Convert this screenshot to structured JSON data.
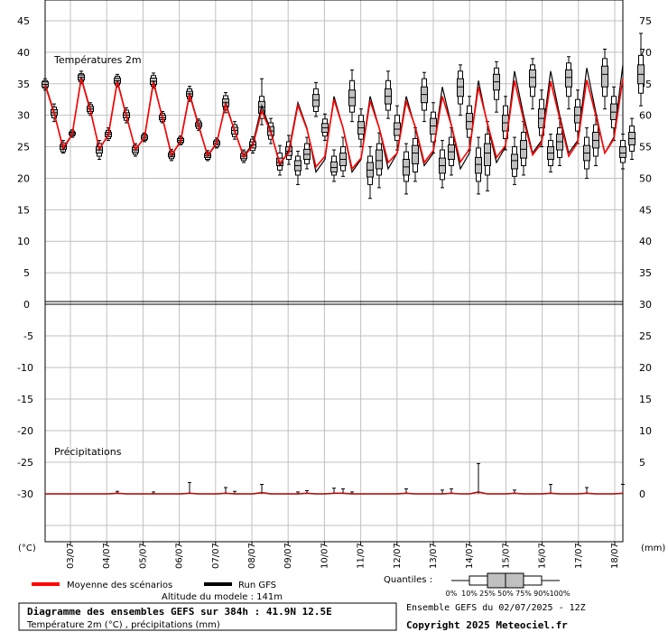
{
  "chart_data": {
    "type": "line",
    "panels": [
      {
        "title": "Températures 2m",
        "left_axis_ticks": [
          "45",
          "40",
          "35",
          "30",
          "25",
          "20",
          "15",
          "10",
          "5",
          "0"
        ],
        "right_axis_ticks": [
          "75",
          "70",
          "65",
          "60",
          "55",
          "50",
          "45",
          "40",
          "35",
          "30"
        ],
        "ylim": [
          0,
          45
        ]
      },
      {
        "title": "Précipitations",
        "left_axis_ticks": [
          "-5",
          "-10",
          "-15",
          "-20",
          "-25",
          "-30"
        ],
        "right_axis_ticks": [
          "25",
          "20",
          "15",
          "10",
          "5",
          "0"
        ],
        "ylim": [
          0,
          30
        ]
      }
    ],
    "x_dates": [
      "03/07",
      "04/07",
      "05/07",
      "06/07",
      "07/07",
      "08/07",
      "09/07",
      "10/07",
      "11/07",
      "12/07",
      "13/07",
      "14/07",
      "15/07",
      "16/07",
      "17/07",
      "18/07"
    ],
    "left_unit": "(°C)",
    "right_unit": "(mm)",
    "temperature_run_gfs": [
      35,
      30.5,
      24.5,
      27,
      36,
      31,
      24.5,
      27,
      35.5,
      30,
      24.5,
      26.5,
      35.5,
      29.5,
      23.5,
      26,
      33.5,
      28.5,
      23.5,
      25.5,
      32,
      27.5,
      23.5,
      25.5,
      31.5,
      27.5,
      22,
      24.5,
      32,
      28,
      21,
      23,
      33,
      28,
      21,
      23,
      33,
      28,
      21.5,
      24,
      33,
      28,
      22,
      24,
      34.5,
      28.5,
      21.5,
      24,
      35.5,
      28.5,
      22.5,
      25,
      37,
      30,
      24,
      26,
      37,
      30,
      24,
      26,
      37.5,
      30.5,
      24,
      26.5,
      38
    ],
    "temperature_mean": [
      34.8,
      30.3,
      24.8,
      27,
      35.8,
      30.8,
      24.7,
      26.8,
      35.3,
      29.9,
      24.6,
      26.4,
      35.2,
      29.6,
      23.7,
      25.8,
      33.3,
      28.3,
      23.6,
      25.6,
      31.7,
      27.5,
      23.4,
      25.2,
      30.7,
      27.3,
      22.3,
      24.1,
      31.6,
      27.8,
      21.8,
      23.5,
      32.5,
      28,
      21.5,
      23.2,
      32.3,
      28,
      22.5,
      24,
      32.2,
      28.2,
      22.5,
      24.4,
      33,
      28.4,
      22.6,
      24.6,
      34.5,
      28.7,
      23.3,
      25.2,
      35.5,
      29.3,
      23.7,
      25.6,
      35.4,
      29.5,
      23.5,
      25.7,
      35.6,
      30,
      24,
      26.2,
      35.8
    ],
    "temperature_boxes": [
      {
        "q0": 34,
        "q10": 34.3,
        "q25": 34.5,
        "q50": 34.9,
        "q75": 35.3,
        "q90": 35.5,
        "q100": 35.8
      },
      {
        "q0": 29,
        "q10": 29.6,
        "q25": 30,
        "q50": 30.4,
        "q75": 30.9,
        "q90": 31.3,
        "q100": 31.8
      },
      {
        "q0": 24,
        "q10": 24.2,
        "q25": 24.6,
        "q50": 25,
        "q75": 25.3,
        "q90": 25.6,
        "q100": 26
      },
      {
        "q0": 26.5,
        "q10": 26.7,
        "q25": 26.9,
        "q50": 27.1,
        "q75": 27.3,
        "q90": 27.5,
        "q100": 27.7
      },
      {
        "q0": 35,
        "q10": 35.3,
        "q25": 35.6,
        "q50": 36,
        "q75": 36.4,
        "q90": 36.6,
        "q100": 37
      },
      {
        "q0": 30,
        "q10": 30.3,
        "q25": 30.6,
        "q50": 31,
        "q75": 31.4,
        "q90": 31.7,
        "q100": 32
      },
      {
        "q0": 23,
        "q10": 23.5,
        "q25": 24,
        "q50": 24.5,
        "q75": 25,
        "q90": 25.5,
        "q100": 26
      },
      {
        "q0": 26,
        "q10": 26.3,
        "q25": 26.6,
        "q50": 27,
        "q75": 27.3,
        "q90": 27.6,
        "q100": 28
      },
      {
        "q0": 34.5,
        "q10": 34.8,
        "q25": 35.1,
        "q50": 35.5,
        "q75": 35.9,
        "q90": 36.2,
        "q100": 36.5
      },
      {
        "q0": 28.8,
        "q10": 29.2,
        "q25": 29.6,
        "q50": 30,
        "q75": 30.4,
        "q90": 30.8,
        "q100": 31.2
      },
      {
        "q0": 23.5,
        "q10": 23.8,
        "q25": 24.1,
        "q50": 24.5,
        "q75": 24.9,
        "q90": 25.2,
        "q100": 25.5
      },
      {
        "q0": 25.8,
        "q10": 26,
        "q25": 26.2,
        "q50": 26.5,
        "q75": 26.8,
        "q90": 27,
        "q100": 27.2
      },
      {
        "q0": 34.3,
        "q10": 34.6,
        "q25": 34.9,
        "q50": 35.4,
        "q75": 35.9,
        "q90": 36.3,
        "q100": 36.7
      },
      {
        "q0": 28.8,
        "q10": 29,
        "q25": 29.3,
        "q50": 29.6,
        "q75": 30,
        "q90": 30.3,
        "q100": 30.6
      },
      {
        "q0": 22.8,
        "q10": 23.1,
        "q25": 23.4,
        "q50": 23.7,
        "q75": 24,
        "q90": 24.3,
        "q100": 24.6
      },
      {
        "q0": 25.3,
        "q10": 25.5,
        "q25": 25.7,
        "q50": 26,
        "q75": 26.3,
        "q90": 26.5,
        "q100": 26.7
      },
      {
        "q0": 32.2,
        "q10": 32.6,
        "q25": 33,
        "q50": 33.4,
        "q75": 33.8,
        "q90": 34.2,
        "q100": 34.6
      },
      {
        "q0": 27.6,
        "q10": 27.9,
        "q25": 28.2,
        "q50": 28.5,
        "q75": 28.8,
        "q90": 29.1,
        "q100": 29.4
      },
      {
        "q0": 22.8,
        "q10": 23,
        "q25": 23.3,
        "q50": 23.6,
        "q75": 23.9,
        "q90": 24.1,
        "q100": 24.4
      },
      {
        "q0": 24.8,
        "q10": 25,
        "q25": 25.3,
        "q50": 25.6,
        "q75": 25.9,
        "q90": 26.1,
        "q100": 26.4
      },
      {
        "q0": 30.4,
        "q10": 30.9,
        "q25": 31.4,
        "q50": 32,
        "q75": 32.6,
        "q90": 33.1,
        "q100": 33.6
      },
      {
        "q0": 26.2,
        "q10": 26.6,
        "q25": 27,
        "q50": 27.6,
        "q75": 28.1,
        "q90": 28.5,
        "q100": 29
      },
      {
        "q0": 22.5,
        "q10": 22.8,
        "q25": 23.1,
        "q50": 23.5,
        "q75": 23.9,
        "q90": 24.2,
        "q100": 24.5
      },
      {
        "q0": 24,
        "q10": 24.4,
        "q25": 24.8,
        "q50": 25.3,
        "q75": 25.8,
        "q90": 26.2,
        "q100": 26.6
      },
      {
        "q0": 28.5,
        "q10": 29.5,
        "q25": 30.3,
        "q50": 31.3,
        "q75": 32.2,
        "q90": 33,
        "q100": 35.8
      },
      {
        "q0": 25.5,
        "q10": 26.2,
        "q25": 26.8,
        "q50": 27.5,
        "q75": 28.2,
        "q90": 28.8,
        "q100": 29.5
      },
      {
        "q0": 20.5,
        "q10": 21.3,
        "q25": 22,
        "q50": 22.5,
        "q75": 23.2,
        "q90": 24,
        "q100": 25.2
      },
      {
        "q0": 22.2,
        "q10": 23,
        "q25": 23.6,
        "q50": 24.3,
        "q75": 25,
        "q90": 25.8,
        "q100": 26.8
      },
      {
        "q0": 19,
        "q10": 20.5,
        "q25": 21.2,
        "q50": 22,
        "q75": 22.8,
        "q90": 23.5,
        "q100": 24.3
      },
      {
        "q0": 21.5,
        "q10": 22.3,
        "q25": 23,
        "q50": 23.8,
        "q75": 24.6,
        "q90": 25.5,
        "q100": 26.5
      },
      {
        "q0": 29.8,
        "q10": 30.6,
        "q25": 31.4,
        "q50": 32.4,
        "q75": 33.3,
        "q90": 34.2,
        "q100": 35.2
      },
      {
        "q0": 26,
        "q10": 26.7,
        "q25": 27.3,
        "q50": 28,
        "q75": 28.7,
        "q90": 29.4,
        "q100": 30.2
      },
      {
        "q0": 19.5,
        "q10": 20.5,
        "q25": 21,
        "q50": 21.7,
        "q75": 22.6,
        "q90": 23.5,
        "q100": 24.5
      },
      {
        "q0": 20.3,
        "q10": 21.2,
        "q25": 22,
        "q50": 23,
        "q75": 24,
        "q90": 25,
        "q100": 26.5
      },
      {
        "q0": 29,
        "q10": 30.5,
        "q25": 31.5,
        "q50": 32.8,
        "q75": 34,
        "q90": 35.5,
        "q100": 37.2
      },
      {
        "q0": 25,
        "q10": 26.2,
        "q25": 27,
        "q50": 28,
        "q75": 29,
        "q90": 30,
        "q100": 31
      },
      {
        "q0": 16.8,
        "q10": 19,
        "q25": 20.2,
        "q50": 21.3,
        "q75": 22.5,
        "q90": 23.5,
        "q100": 25
      },
      {
        "q0": 18.5,
        "q10": 20.5,
        "q25": 21.5,
        "q50": 22.8,
        "q75": 24.5,
        "q90": 25.5,
        "q100": 27.2
      },
      {
        "q0": 29.5,
        "q10": 30.8,
        "q25": 31.8,
        "q50": 33,
        "q75": 34.2,
        "q90": 35.5,
        "q100": 37
      },
      {
        "q0": 24.5,
        "q10": 26,
        "q25": 26.8,
        "q50": 27.8,
        "q75": 28.8,
        "q90": 30,
        "q100": 31.5
      },
      {
        "q0": 17.5,
        "q10": 19.5,
        "q25": 20.5,
        "q50": 21.8,
        "q75": 23,
        "q90": 24.2,
        "q100": 25.5
      },
      {
        "q0": 19.5,
        "q10": 21,
        "q25": 22.3,
        "q50": 24,
        "q75": 25.2,
        "q90": 26.3,
        "q100": 28
      },
      {
        "q0": 29,
        "q10": 30.8,
        "q25": 32,
        "q50": 33.3,
        "q75": 34.5,
        "q90": 35.8,
        "q100": 36.8
      },
      {
        "q0": 24,
        "q10": 25.8,
        "q25": 27,
        "q50": 28.3,
        "q75": 29.5,
        "q90": 30.5,
        "q100": 32
      },
      {
        "q0": 18.5,
        "q10": 19.8,
        "q25": 20.8,
        "q50": 22,
        "q75": 23.2,
        "q90": 24.5,
        "q100": 26
      },
      {
        "q0": 20.5,
        "q10": 22,
        "q25": 23,
        "q50": 24.2,
        "q75": 25.3,
        "q90": 26.5,
        "q100": 28
      },
      {
        "q0": 30,
        "q10": 31.8,
        "q25": 33,
        "q50": 34.5,
        "q75": 35.8,
        "q90": 37,
        "q100": 38
      },
      {
        "q0": 24.5,
        "q10": 26.5,
        "q25": 27.8,
        "q50": 29,
        "q75": 30.3,
        "q90": 31.5,
        "q100": 33
      },
      {
        "q0": 17.5,
        "q10": 19.5,
        "q25": 20.8,
        "q50": 22.2,
        "q75": 23.3,
        "q90": 24.8,
        "q100": 26.5
      },
      {
        "q0": 18,
        "q10": 20.5,
        "q25": 22,
        "q50": 24,
        "q75": 25.5,
        "q90": 27,
        "q100": 29
      },
      {
        "q0": 30.5,
        "q10": 32.5,
        "q25": 34,
        "q50": 35.3,
        "q75": 36.5,
        "q90": 37.5,
        "q100": 38.5
      },
      {
        "q0": 24.5,
        "q10": 26.3,
        "q25": 27.5,
        "q50": 28.8,
        "q75": 30,
        "q90": 31.5,
        "q100": 33
      },
      {
        "q0": 19,
        "q10": 20.3,
        "q25": 21.5,
        "q50": 22.8,
        "q75": 23.8,
        "q90": 25,
        "q100": 26.5
      },
      {
        "q0": 20.5,
        "q10": 22,
        "q25": 23.2,
        "q50": 24.6,
        "q75": 26,
        "q90": 27.3,
        "q100": 29
      },
      {
        "q0": 31,
        "q10": 33,
        "q25": 34.5,
        "q50": 36,
        "q75": 37.2,
        "q90": 38,
        "q100": 39
      },
      {
        "q0": 25,
        "q10": 26.8,
        "q25": 28,
        "q50": 29.5,
        "q75": 31,
        "q90": 32.5,
        "q100": 34
      },
      {
        "q0": 21,
        "q10": 22,
        "q25": 23,
        "q50": 24,
        "q75": 25,
        "q90": 26,
        "q100": 27
      },
      {
        "q0": 22,
        "q10": 23.3,
        "q25": 24.5,
        "q50": 25.8,
        "q75": 27,
        "q90": 28,
        "q100": 29.5
      },
      {
        "q0": 31,
        "q10": 33,
        "q25": 34.5,
        "q50": 36,
        "q75": 37.2,
        "q90": 38.3,
        "q100": 39.3
      },
      {
        "q0": 25.5,
        "q10": 27.5,
        "q25": 28.8,
        "q50": 30,
        "q75": 31.3,
        "q90": 32.5,
        "q100": 34
      },
      {
        "q0": 20,
        "q10": 21.5,
        "q25": 22.8,
        "q50": 24,
        "q75": 25.2,
        "q90": 26.5,
        "q100": 28
      },
      {
        "q0": 22,
        "q10": 23.5,
        "q25": 24.8,
        "q50": 26,
        "q75": 27.3,
        "q90": 28.5,
        "q100": 30
      },
      {
        "q0": 31,
        "q10": 33,
        "q25": 34.5,
        "q50": 36.5,
        "q75": 37.8,
        "q90": 39,
        "q100": 40.5
      },
      {
        "q0": 26,
        "q10": 28,
        "q25": 29.3,
        "q50": 30.5,
        "q75": 31.8,
        "q90": 33,
        "q100": 34.5
      },
      {
        "q0": 21.5,
        "q10": 22.5,
        "q25": 23.3,
        "q50": 24,
        "q75": 25,
        "q90": 26,
        "q100": 27
      },
      {
        "q0": 23,
        "q10": 24.3,
        "q25": 25.3,
        "q50": 26.3,
        "q75": 27.3,
        "q90": 28.3,
        "q100": 29.5
      },
      {
        "q0": 31.5,
        "q10": 33.5,
        "q25": 35,
        "q50": 36.5,
        "q75": 38,
        "q90": 39.5,
        "q100": 43
      }
    ],
    "precipitation_max_mm": [
      0,
      0,
      0,
      0,
      0,
      0,
      0,
      0,
      0.4,
      0,
      0,
      0,
      0.3,
      0,
      0,
      0,
      1.8,
      0,
      0,
      0,
      1,
      0.4,
      0,
      0,
      1.5,
      0,
      0,
      0,
      0.3,
      0.5,
      0,
      0,
      0.9,
      0.8,
      0.3,
      0,
      0,
      0,
      0,
      0,
      0.8,
      0,
      0,
      0,
      0.6,
      0.8,
      0,
      0,
      4.8,
      0,
      0,
      0,
      0.6,
      0,
      0,
      0,
      1.5,
      0,
      0,
      0,
      1,
      0,
      0,
      0,
      1.5
    ],
    "precipitation_mean_mm": [
      0,
      0,
      0,
      0,
      0,
      0,
      0,
      0,
      0.1,
      0,
      0,
      0,
      0,
      0,
      0,
      0,
      0.1,
      0,
      0,
      0,
      0.1,
      0,
      0,
      0,
      0.2,
      0,
      0,
      0,
      0,
      0.1,
      0,
      0,
      0.1,
      0.1,
      0,
      0,
      0,
      0,
      0,
      0,
      0.1,
      0,
      0,
      0,
      0,
      0.1,
      0,
      0,
      0.3,
      0,
      0,
      0,
      0.1,
      0,
      0,
      0,
      0.1,
      0,
      0,
      0,
      0.1,
      0,
      0,
      0,
      0.1
    ],
    "legend": {
      "mean_label": "Moyenne des scénarios",
      "run_label": "Run GFS",
      "quantiles_label": "Quantiles :",
      "quantile_ticks": [
        "0%",
        "10%",
        "25%",
        "50%",
        "75%",
        "90%",
        "100%"
      ]
    },
    "colors": {
      "mean": "#ff0000",
      "run": "#000000",
      "box_fill": "#c0c0c0",
      "grid": "#c0c0c0"
    }
  },
  "footer": {
    "altitude": "Altitude du modele : 141m",
    "title": "Diagramme des ensembles GEFS sur 384h : 41.9N 12.5E",
    "subtitle": "Température 2m (°C) , précipitations (mm)",
    "ensemble": "Ensemble GEFS du 02/07/2025 - 12Z",
    "copyright": "Copyright 2025 Meteociel.fr"
  }
}
